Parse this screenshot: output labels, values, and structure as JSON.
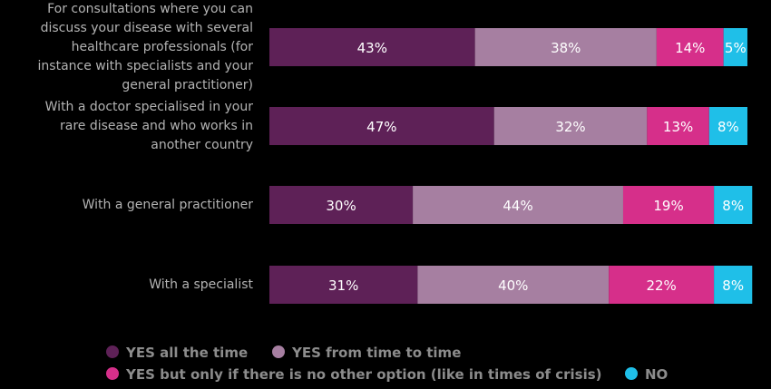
{
  "chart_data": {
    "type": "bar",
    "orientation": "horizontal",
    "stacked": true,
    "percent": true,
    "categories": [
      [
        "For consultations where you can",
        "discuss your disease with several",
        "healthcare professionals (for",
        "instance with specialists and your",
        "general practitioner)"
      ],
      [
        "With a doctor specialised in your",
        "rare disease and who works in",
        "another country"
      ],
      [
        "With a general practitioner"
      ],
      [
        "With a specialist"
      ]
    ],
    "series": [
      {
        "name": "YES all the time",
        "color": "#5e2157",
        "values": [
          43,
          47,
          30,
          31
        ]
      },
      {
        "name": "YES from time to time",
        "color": "#a67fa1",
        "values": [
          38,
          32,
          44,
          40
        ]
      },
      {
        "name": "YES but only if there is no other option (like in times of crisis)",
        "color": "#d62f8a",
        "values": [
          14,
          13,
          19,
          22
        ]
      },
      {
        "name": "NO",
        "color": "#1fbfe8",
        "values": [
          5,
          8,
          8,
          8
        ]
      }
    ],
    "title": "",
    "xlabel": "",
    "ylabel": "",
    "xlim": [
      0,
      100
    ],
    "grid": false,
    "legend": "bottom"
  }
}
